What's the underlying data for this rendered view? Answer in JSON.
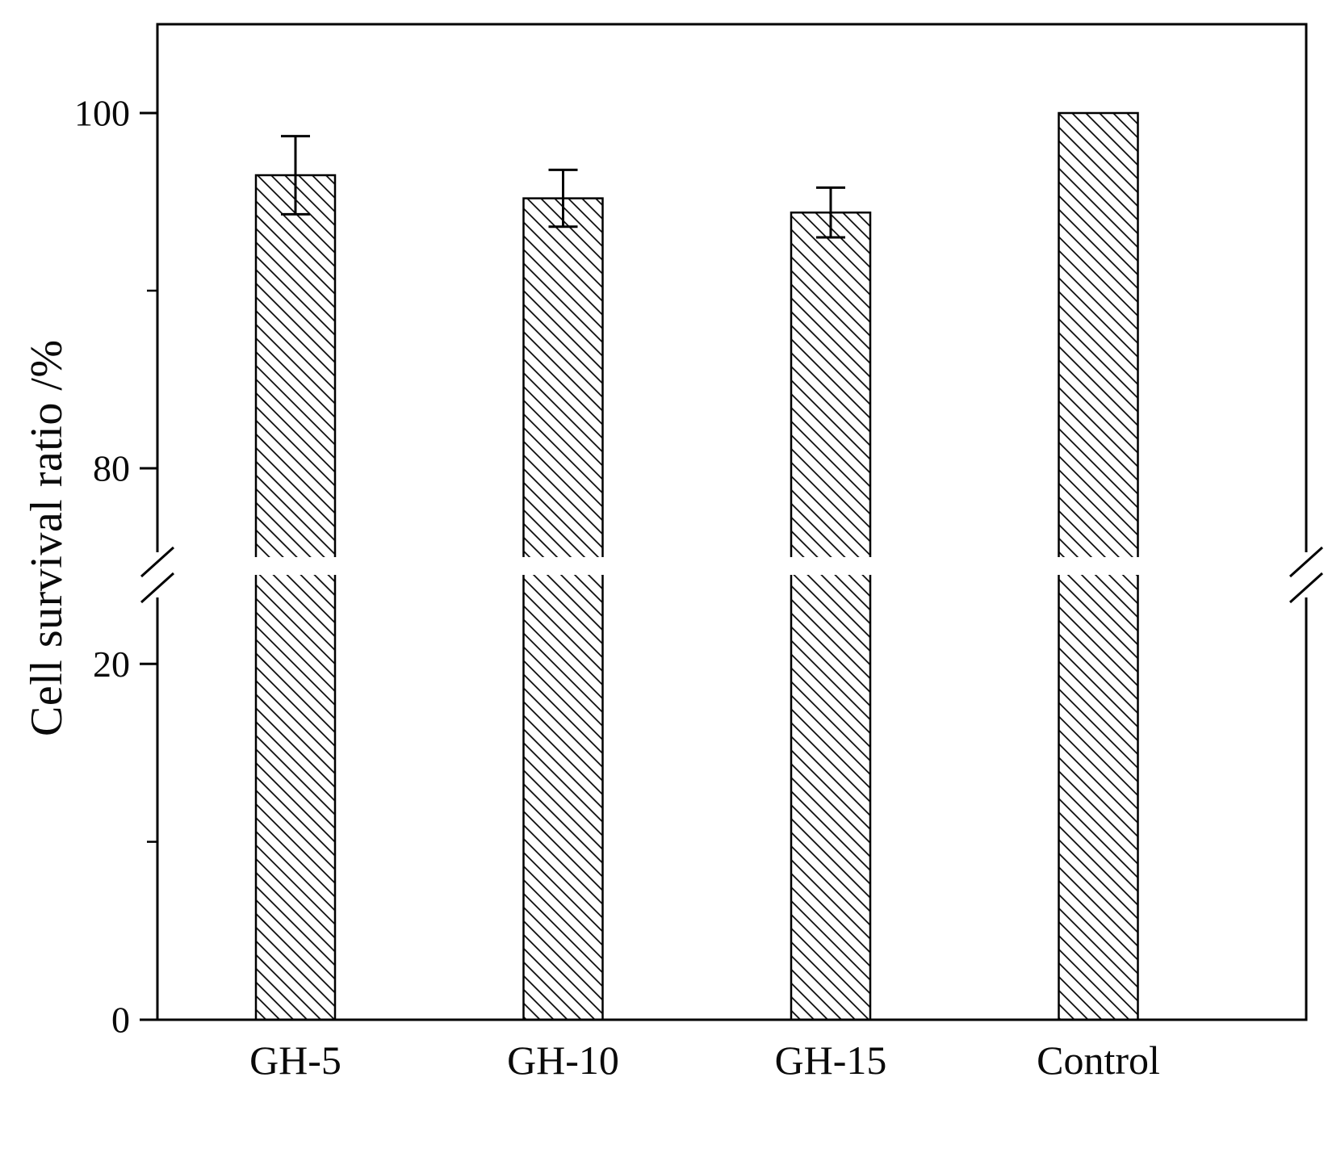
{
  "figure": {
    "background": "#ffffff",
    "axis_color": "#000000",
    "text_color": "#0a0a0a"
  },
  "chart_data": {
    "type": "bar",
    "categories": [
      "GH-5",
      "GH-10",
      "GH-15",
      "Control"
    ],
    "values": [
      96.5,
      95.2,
      94.4,
      100
    ],
    "errors": [
      2.2,
      1.6,
      1.4,
      0
    ],
    "title": "",
    "xlabel": "",
    "ylabel": "Cell survival ratio /%",
    "ylim": [
      0,
      105
    ],
    "axis_break": {
      "lower_segment": [
        0,
        25
      ],
      "upper_segment": [
        75,
        105
      ]
    },
    "yticks_major": [
      0,
      20,
      80,
      100
    ],
    "yticks_minor": [
      10,
      90
    ],
    "bar_style": {
      "fill": "#ffffff",
      "hatch": "diagonal-backslash",
      "edge_color": "#000000"
    },
    "grid": false,
    "legend": null
  }
}
